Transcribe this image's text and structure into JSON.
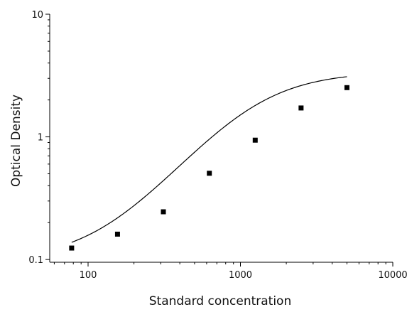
{
  "chart_data": {
    "type": "scatter",
    "title": "",
    "xlabel": "Standard concentration",
    "ylabel": "Optical Density",
    "x_scale": "log",
    "y_scale": "log",
    "xlim": [
      56,
      10000
    ],
    "ylim": [
      0.095,
      10
    ],
    "x_ticks": [
      100,
      1000,
      10000
    ],
    "x_tick_labels": [
      "100",
      "1000",
      "10000"
    ],
    "y_ticks": [
      0.1,
      1,
      10
    ],
    "y_tick_labels": [
      "0.1",
      "1",
      "10"
    ],
    "grid": false,
    "legend": "none",
    "marker": "square",
    "color": "#000000",
    "series": [
      {
        "x": [
          78,
          156,
          312,
          625,
          1250,
          2500,
          5000
        ],
        "y": [
          0.124,
          0.161,
          0.245,
          0.505,
          0.94,
          1.72,
          2.52
        ]
      }
    ],
    "fit": {
      "type": "four-parameter-logistic",
      "a": 0.097,
      "b": 1.6,
      "c": 1200,
      "d": 3.4,
      "x_range": [
        78,
        5000
      ]
    }
  }
}
